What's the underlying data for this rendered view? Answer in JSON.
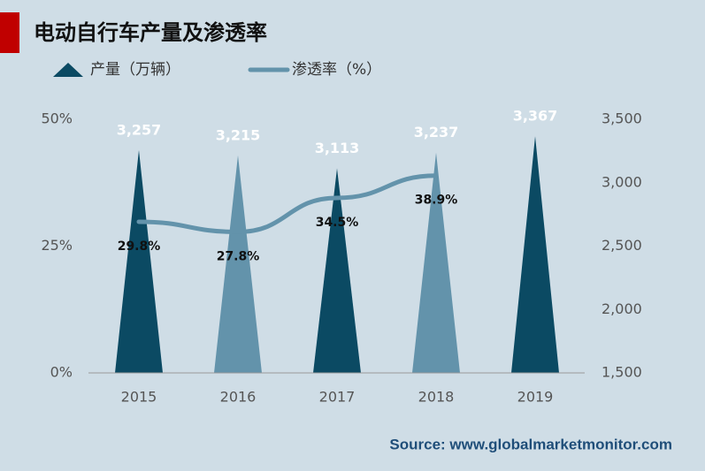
{
  "chart_data": {
    "type": "triangle-line",
    "title": "电动自行车产量及渗透率",
    "categories": [
      "2015",
      "2016",
      "2017",
      "2018",
      "2019"
    ],
    "series": [
      {
        "name": "产量（万辆）",
        "type": "triangle",
        "axis": "y2",
        "colors": [
          "#0b4a63",
          "#6393ab",
          "#0b4a63",
          "#6393ab",
          "#0b4a63"
        ],
        "color": "#0b4a63",
        "values": [
          3257,
          3215,
          3113,
          3237,
          3367
        ],
        "value_labels": [
          "3,257",
          "3,215",
          "3,113",
          "3,237",
          "3,367"
        ]
      },
      {
        "name": "渗透率（%）",
        "type": "line",
        "color": "#6393ab",
        "values": [
          29.8,
          27.8,
          34.5,
          38.9,
          null
        ],
        "value_labels": [
          "29.8%",
          "27.8%",
          "34.5%",
          "38.9%",
          null
        ]
      }
    ],
    "ylim": [
      0,
      50
    ],
    "yticks": [
      {
        "value": 0,
        "label": "0%"
      },
      {
        "value": 25,
        "label": "25%"
      },
      {
        "value": 50,
        "label": "50%"
      }
    ],
    "y2lim": [
      1500,
      3500
    ],
    "y2ticks": [
      {
        "value": 1500,
        "label": "1,500"
      },
      {
        "value": 2000,
        "label": "2,000"
      },
      {
        "value": 2500,
        "label": "2,500"
      },
      {
        "value": 3000,
        "label": "3,000"
      },
      {
        "value": 3500,
        "label": "3,500"
      }
    ],
    "source": "Source: www.globalmarketmonitor.com"
  }
}
